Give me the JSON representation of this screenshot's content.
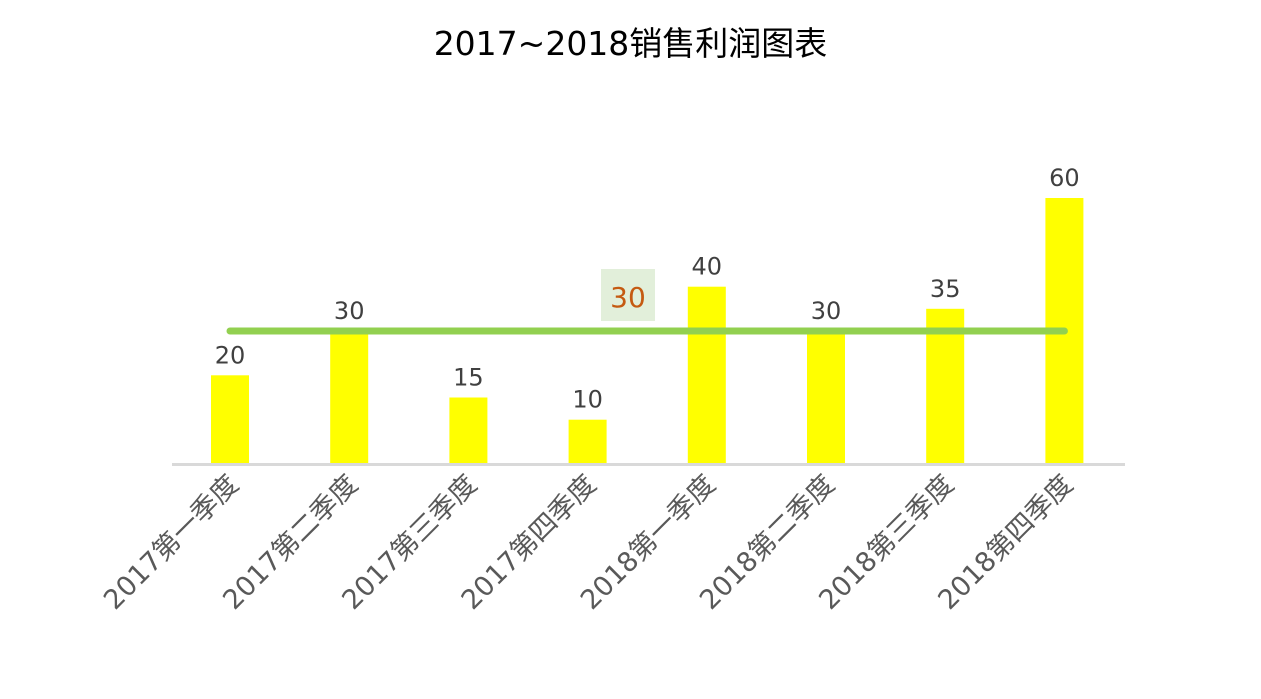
{
  "chart_data": {
    "type": "bar",
    "title": "2017~2018销售利润图表",
    "categories": [
      "2017第一季度",
      "2017第二季度",
      "2017第三季度",
      "2017第四季度",
      "2018第一季度",
      "2018第二季度",
      "2018第三季度",
      "2018第四季度"
    ],
    "values": [
      20,
      30,
      15,
      10,
      40,
      30,
      35,
      60
    ],
    "reference_line": {
      "value": 30,
      "label": "30",
      "color": "#92d050"
    },
    "ylim": [
      0,
      60
    ],
    "grid": false,
    "legend": "none",
    "colors": {
      "bar": "#ffff00",
      "axis": "#d9d9d9",
      "data_label": "#404040",
      "tick_label": "#595959",
      "avg_label": "#c55a11",
      "avg_label_bg": "#e2efda"
    }
  }
}
